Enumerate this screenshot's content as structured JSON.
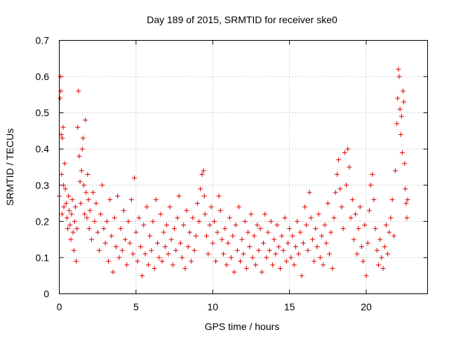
{
  "chart_data": {
    "type": "scatter",
    "title": "Day 189 of 2015, SRMTID for receiver ske0",
    "xlabel": "GPS time / hours",
    "ylabel": "SRMTID / TECUs",
    "xlim": [
      0,
      24
    ],
    "ylim": [
      0,
      0.7
    ],
    "xticks": [
      0,
      5,
      10,
      15,
      20
    ],
    "yticks": [
      0,
      0.1,
      0.2,
      0.3,
      0.4,
      0.5,
      0.6,
      0.7
    ],
    "xtick_labels": [
      "0",
      "5",
      "10",
      "15",
      "20"
    ],
    "ytick_labels": [
      "0",
      "0.1",
      "0.2",
      "0.3",
      "0.4",
      "0.5",
      "0.6",
      "0.7"
    ],
    "grid": true,
    "marker": "+",
    "marker_color": "#e00000",
    "series": [
      {
        "name": "SRMTID",
        "points": [
          [
            0.0,
            0.27
          ],
          [
            0.05,
            0.54
          ],
          [
            0.08,
            0.6
          ],
          [
            0.1,
            0.56
          ],
          [
            0.12,
            0.44
          ],
          [
            0.15,
            0.33
          ],
          [
            0.18,
            0.22
          ],
          [
            0.2,
            0.43
          ],
          [
            0.25,
            0.46
          ],
          [
            0.28,
            0.3
          ],
          [
            0.3,
            0.24
          ],
          [
            0.35,
            0.36
          ],
          [
            0.4,
            0.29
          ],
          [
            0.45,
            0.25
          ],
          [
            0.5,
            0.21
          ],
          [
            0.55,
            0.18
          ],
          [
            0.6,
            0.27
          ],
          [
            0.65,
            0.23
          ],
          [
            0.7,
            0.19
          ],
          [
            0.75,
            0.15
          ],
          [
            0.8,
            0.22
          ],
          [
            0.85,
            0.26
          ],
          [
            0.9,
            0.17
          ],
          [
            0.95,
            0.12
          ],
          [
            1.0,
            0.2
          ],
          [
            1.05,
            0.24
          ],
          [
            1.1,
            0.09
          ],
          [
            1.15,
            0.18
          ],
          [
            1.2,
            0.46
          ],
          [
            1.25,
            0.56
          ],
          [
            1.3,
            0.38
          ],
          [
            1.35,
            0.31
          ],
          [
            1.4,
            0.25
          ],
          [
            1.45,
            0.34
          ],
          [
            1.5,
            0.4
          ],
          [
            1.55,
            0.43
          ],
          [
            1.6,
            0.3
          ],
          [
            1.65,
            0.22
          ],
          [
            1.7,
            0.48
          ],
          [
            1.75,
            0.28
          ],
          [
            1.8,
            0.21
          ],
          [
            1.85,
            0.33
          ],
          [
            1.9,
            0.26
          ],
          [
            1.95,
            0.18
          ],
          [
            2.0,
            0.23
          ],
          [
            2.1,
            0.15
          ],
          [
            2.2,
            0.28
          ],
          [
            2.3,
            0.2
          ],
          [
            2.4,
            0.25
          ],
          [
            2.5,
            0.17
          ],
          [
            2.6,
            0.12
          ],
          [
            2.7,
            0.22
          ],
          [
            2.8,
            0.3
          ],
          [
            2.9,
            0.18
          ],
          [
            3.0,
            0.14
          ],
          [
            3.1,
            0.2
          ],
          [
            3.2,
            0.09
          ],
          [
            3.3,
            0.26
          ],
          [
            3.4,
            0.16
          ],
          [
            3.5,
            0.06
          ],
          [
            3.6,
            0.21
          ],
          [
            3.7,
            0.13
          ],
          [
            3.8,
            0.27
          ],
          [
            3.9,
            0.1
          ],
          [
            4.0,
            0.18
          ],
          [
            4.1,
            0.12
          ],
          [
            4.2,
            0.23
          ],
          [
            4.3,
            0.15
          ],
          [
            4.4,
            0.08
          ],
          [
            4.5,
            0.2
          ],
          [
            4.6,
            0.14
          ],
          [
            4.7,
            0.26
          ],
          [
            4.8,
            0.11
          ],
          [
            4.9,
            0.32
          ],
          [
            5.0,
            0.17
          ],
          [
            5.1,
            0.09
          ],
          [
            5.2,
            0.21
          ],
          [
            5.3,
            0.13
          ],
          [
            5.4,
            0.05
          ],
          [
            5.5,
            0.19
          ],
          [
            5.6,
            0.11
          ],
          [
            5.7,
            0.24
          ],
          [
            5.8,
            0.08
          ],
          [
            5.9,
            0.16
          ],
          [
            6.0,
            0.12
          ],
          [
            6.1,
            0.2
          ],
          [
            6.2,
            0.07
          ],
          [
            6.3,
            0.26
          ],
          [
            6.4,
            0.14
          ],
          [
            6.5,
            0.1
          ],
          [
            6.6,
            0.22
          ],
          [
            6.7,
            0.09
          ],
          [
            6.8,
            0.17
          ],
          [
            6.9,
            0.13
          ],
          [
            7.0,
            0.19
          ],
          [
            7.1,
            0.11
          ],
          [
            7.2,
            0.24
          ],
          [
            7.3,
            0.15
          ],
          [
            7.4,
            0.08
          ],
          [
            7.5,
            0.18
          ],
          [
            7.6,
            0.12
          ],
          [
            7.7,
            0.21
          ],
          [
            7.8,
            0.27
          ],
          [
            7.9,
            0.14
          ],
          [
            8.0,
            0.1
          ],
          [
            8.1,
            0.19
          ],
          [
            8.2,
            0.07
          ],
          [
            8.3,
            0.23
          ],
          [
            8.4,
            0.13
          ],
          [
            8.5,
            0.17
          ],
          [
            8.6,
            0.09
          ],
          [
            8.7,
            0.21
          ],
          [
            8.8,
            0.12
          ],
          [
            8.9,
            0.16
          ],
          [
            9.0,
            0.25
          ],
          [
            9.1,
            0.2
          ],
          [
            9.2,
            0.29
          ],
          [
            9.3,
            0.33
          ],
          [
            9.4,
            0.34
          ],
          [
            9.45,
            0.27
          ],
          [
            9.5,
            0.22
          ],
          [
            9.6,
            0.16
          ],
          [
            9.7,
            0.11
          ],
          [
            9.8,
            0.19
          ],
          [
            9.9,
            0.24
          ],
          [
            10.0,
            0.14
          ],
          [
            10.1,
            0.2
          ],
          [
            10.2,
            0.09
          ],
          [
            10.3,
            0.17
          ],
          [
            10.4,
            0.27
          ],
          [
            10.5,
            0.23
          ],
          [
            10.6,
            0.15
          ],
          [
            10.7,
            0.11
          ],
          [
            10.8,
            0.18
          ],
          [
            10.9,
            0.08
          ],
          [
            11.0,
            0.14
          ],
          [
            11.1,
            0.21
          ],
          [
            11.2,
            0.1
          ],
          [
            11.3,
            0.16
          ],
          [
            11.4,
            0.06
          ],
          [
            11.5,
            0.19
          ],
          [
            11.6,
            0.12
          ],
          [
            11.7,
            0.24
          ],
          [
            11.8,
            0.09
          ],
          [
            11.9,
            0.15
          ],
          [
            12.0,
            0.11
          ],
          [
            12.1,
            0.2
          ],
          [
            12.2,
            0.07
          ],
          [
            12.3,
            0.17
          ],
          [
            12.4,
            0.13
          ],
          [
            12.5,
            0.22
          ],
          [
            12.6,
            0.1
          ],
          [
            12.7,
            0.16
          ],
          [
            12.8,
            0.08
          ],
          [
            12.9,
            0.19
          ],
          [
            13.0,
            0.12
          ],
          [
            13.1,
            0.18
          ],
          [
            13.2,
            0.06
          ],
          [
            13.3,
            0.14
          ],
          [
            13.4,
            0.22
          ],
          [
            13.5,
            0.1
          ],
          [
            13.6,
            0.17
          ],
          [
            13.7,
            0.12
          ],
          [
            13.8,
            0.2
          ],
          [
            13.9,
            0.08
          ],
          [
            14.0,
            0.15
          ],
          [
            14.1,
            0.11
          ],
          [
            14.2,
            0.19
          ],
          [
            14.3,
            0.13
          ],
          [
            14.4,
            0.07
          ],
          [
            14.5,
            0.16
          ],
          [
            14.6,
            0.12
          ],
          [
            14.7,
            0.21
          ],
          [
            14.8,
            0.09
          ],
          [
            14.9,
            0.14
          ],
          [
            15.0,
            0.18
          ],
          [
            15.1,
            0.1
          ],
          [
            15.2,
            0.16
          ],
          [
            15.3,
            0.08
          ],
          [
            15.4,
            0.13
          ],
          [
            15.5,
            0.2
          ],
          [
            15.6,
            0.11
          ],
          [
            15.7,
            0.17
          ],
          [
            15.8,
            0.05
          ],
          [
            15.9,
            0.14
          ],
          [
            16.0,
            0.24
          ],
          [
            16.1,
            0.19
          ],
          [
            16.2,
            0.12
          ],
          [
            16.3,
            0.28
          ],
          [
            16.4,
            0.21
          ],
          [
            16.5,
            0.15
          ],
          [
            16.6,
            0.09
          ],
          [
            16.7,
            0.18
          ],
          [
            16.8,
            0.13
          ],
          [
            16.9,
            0.22
          ],
          [
            17.0,
            0.1
          ],
          [
            17.1,
            0.16
          ],
          [
            17.2,
            0.08
          ],
          [
            17.3,
            0.19
          ],
          [
            17.4,
            0.14
          ],
          [
            17.5,
            0.25
          ],
          [
            17.6,
            0.11
          ],
          [
            17.7,
            0.17
          ],
          [
            17.8,
            0.07
          ],
          [
            17.9,
            0.21
          ],
          [
            18.0,
            0.28
          ],
          [
            18.1,
            0.33
          ],
          [
            18.2,
            0.37
          ],
          [
            18.3,
            0.29
          ],
          [
            18.4,
            0.24
          ],
          [
            18.5,
            0.18
          ],
          [
            18.6,
            0.39
          ],
          [
            18.7,
            0.3
          ],
          [
            18.8,
            0.4
          ],
          [
            18.9,
            0.35
          ],
          [
            19.0,
            0.21
          ],
          [
            19.1,
            0.26
          ],
          [
            19.2,
            0.15
          ],
          [
            19.3,
            0.22
          ],
          [
            19.4,
            0.11
          ],
          [
            19.5,
            0.18
          ],
          [
            19.6,
            0.24
          ],
          [
            19.7,
            0.13
          ],
          [
            19.8,
            0.09
          ],
          [
            19.9,
            0.19
          ],
          [
            20.0,
            0.05
          ],
          [
            20.1,
            0.14
          ],
          [
            20.2,
            0.23
          ],
          [
            20.3,
            0.3
          ],
          [
            20.4,
            0.33
          ],
          [
            20.5,
            0.26
          ],
          [
            20.6,
            0.18
          ],
          [
            20.7,
            0.12
          ],
          [
            20.8,
            0.08
          ],
          [
            20.9,
            0.15
          ],
          [
            21.0,
            0.1
          ],
          [
            21.1,
            0.07
          ],
          [
            21.2,
            0.13
          ],
          [
            21.3,
            0.19
          ],
          [
            21.4,
            0.11
          ],
          [
            21.5,
            0.17
          ],
          [
            21.6,
            0.21
          ],
          [
            21.7,
            0.26
          ],
          [
            21.8,
            0.16
          ],
          [
            21.9,
            0.34
          ],
          [
            22.0,
            0.47
          ],
          [
            22.05,
            0.54
          ],
          [
            22.1,
            0.62
          ],
          [
            22.15,
            0.6
          ],
          [
            22.2,
            0.51
          ],
          [
            22.25,
            0.44
          ],
          [
            22.3,
            0.49
          ],
          [
            22.35,
            0.39
          ],
          [
            22.4,
            0.56
          ],
          [
            22.45,
            0.53
          ],
          [
            22.5,
            0.36
          ],
          [
            22.55,
            0.29
          ],
          [
            22.6,
            0.25
          ],
          [
            22.65,
            0.21
          ],
          [
            22.7,
            0.26
          ]
        ]
      }
    ]
  }
}
